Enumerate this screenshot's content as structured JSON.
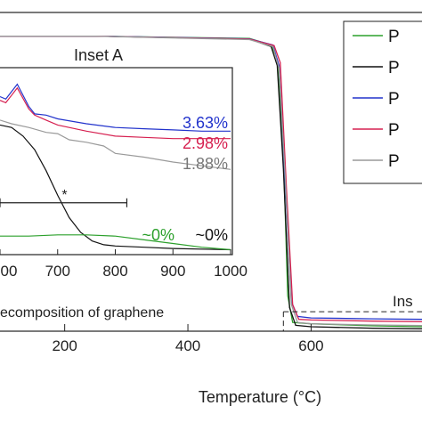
{
  "chart_data": [
    {
      "type": "line",
      "xlabel": "Temperature (°C)",
      "ylabel": "",
      "xlim": [
        95,
        780
      ],
      "ylim": [
        0,
        105
      ],
      "x_ticks": [
        "200",
        "400",
        "600"
      ],
      "legend": {
        "placement": "top-right",
        "entries": [
          {
            "label": "P",
            "color": "#2ca02c"
          },
          {
            "label": "P",
            "color": "#111111"
          },
          {
            "label": "P",
            "color": "#2233cc"
          },
          {
            "label": "P",
            "color": "#d62050"
          },
          {
            "label": "P",
            "color": "#9a9a9a"
          }
        ]
      },
      "series": [
        {
          "color": "#2ca02c",
          "x": [
            95,
            250,
            500,
            535,
            545,
            555,
            562,
            570,
            600,
            700,
            780
          ],
          "y": [
            100,
            100,
            99.2,
            97,
            92,
            60,
            12,
            3,
            2.5,
            1.8,
            1.5
          ]
        },
        {
          "color": "#111111",
          "x": [
            95,
            250,
            500,
            535,
            545,
            555,
            565,
            575,
            600,
            700,
            780
          ],
          "y": [
            100,
            100,
            99,
            96.5,
            90,
            55,
            8,
            2,
            1.5,
            1,
            0.8
          ]
        },
        {
          "color": "#2233cc",
          "x": [
            95,
            250,
            500,
            538,
            548,
            558,
            568,
            578,
            600,
            700,
            780
          ],
          "y": [
            100,
            100,
            99.1,
            97,
            90,
            50,
            10,
            5,
            4.5,
            4.2,
            4
          ]
        },
        {
          "color": "#d62050",
          "x": [
            95,
            250,
            500,
            540,
            550,
            560,
            570,
            580,
            600,
            700,
            780
          ],
          "y": [
            100,
            100,
            99,
            96.8,
            91,
            48,
            9,
            4,
            3.8,
            3.4,
            3.2
          ]
        },
        {
          "color": "#9a9a9a",
          "x": [
            95,
            250,
            500,
            538,
            548,
            558,
            568,
            578,
            600,
            700,
            780
          ],
          "y": [
            100,
            100,
            98.8,
            96.5,
            89,
            52,
            9,
            3,
            2.5,
            2.1,
            1.9
          ]
        }
      ],
      "annotation_label": "Ins",
      "zoom_box": {
        "x": [
          555,
          780
        ],
        "y": [
          0,
          6.6
        ]
      }
    },
    {
      "type": "line",
      "title": "Inset A",
      "xlim": [
        600,
        1000
      ],
      "ylim": [
        0,
        15
      ],
      "x_ticks": [
        "00",
        "700",
        "800",
        "900",
        "1000"
      ],
      "series": [
        {
          "color": "#2233cc",
          "x": [
            600,
            610,
            630,
            650,
            660,
            680,
            700,
            750,
            800,
            850,
            900,
            950,
            1000
          ],
          "y": [
            12.8,
            12.6,
            13.8,
            12.0,
            11.4,
            11.3,
            11.0,
            10.6,
            10.3,
            10.2,
            10.1,
            10.0,
            10.0
          ]
        },
        {
          "color": "#d62050",
          "x": [
            600,
            610,
            630,
            650,
            660,
            680,
            700,
            750,
            800,
            850,
            900,
            950,
            1000
          ],
          "y": [
            12.5,
            12.3,
            13.5,
            11.8,
            11.3,
            10.9,
            10.5,
            10.0,
            9.6,
            9.5,
            9.4,
            9.4,
            9.4
          ]
        },
        {
          "color": "#9a9a9a",
          "x": [
            600,
            620,
            650,
            680,
            700,
            720,
            750,
            780,
            800,
            850,
            900,
            950,
            1000
          ],
          "y": [
            10.9,
            10.6,
            10.3,
            9.9,
            9.8,
            9.3,
            9.1,
            8.8,
            8.2,
            7.9,
            7.5,
            7.2,
            6.9
          ]
        },
        {
          "color": "#111111",
          "x": [
            600,
            620,
            640,
            660,
            680,
            700,
            720,
            740,
            760,
            780,
            800,
            850,
            900,
            1000
          ],
          "y": [
            10.5,
            10.3,
            9.6,
            8.5,
            6.8,
            4.8,
            3.0,
            1.8,
            1.1,
            0.8,
            0.7,
            0.6,
            0.5,
            0.4
          ]
        },
        {
          "color": "#2ca02c",
          "x": [
            600,
            650,
            700,
            750,
            800,
            850,
            900,
            950,
            1000
          ],
          "y": [
            1.5,
            1.5,
            1.6,
            1.6,
            1.5,
            1.2,
            0.9,
            0.6,
            0.4
          ]
        }
      ],
      "residue_labels": [
        {
          "text": "3.63%",
          "color": "#2233cc"
        },
        {
          "text": "2.98%",
          "color": "#d62050"
        },
        {
          "text": "1.88%",
          "color": "#777777"
        },
        {
          "text": "~0%",
          "color": "#2ca02c"
        },
        {
          "text": "~0%",
          "color": "#111111"
        }
      ],
      "range_marker": {
        "x": [
          600,
          820
        ],
        "y": 4.2,
        "label": "*"
      },
      "caption": "ecomposition of graphene"
    }
  ]
}
